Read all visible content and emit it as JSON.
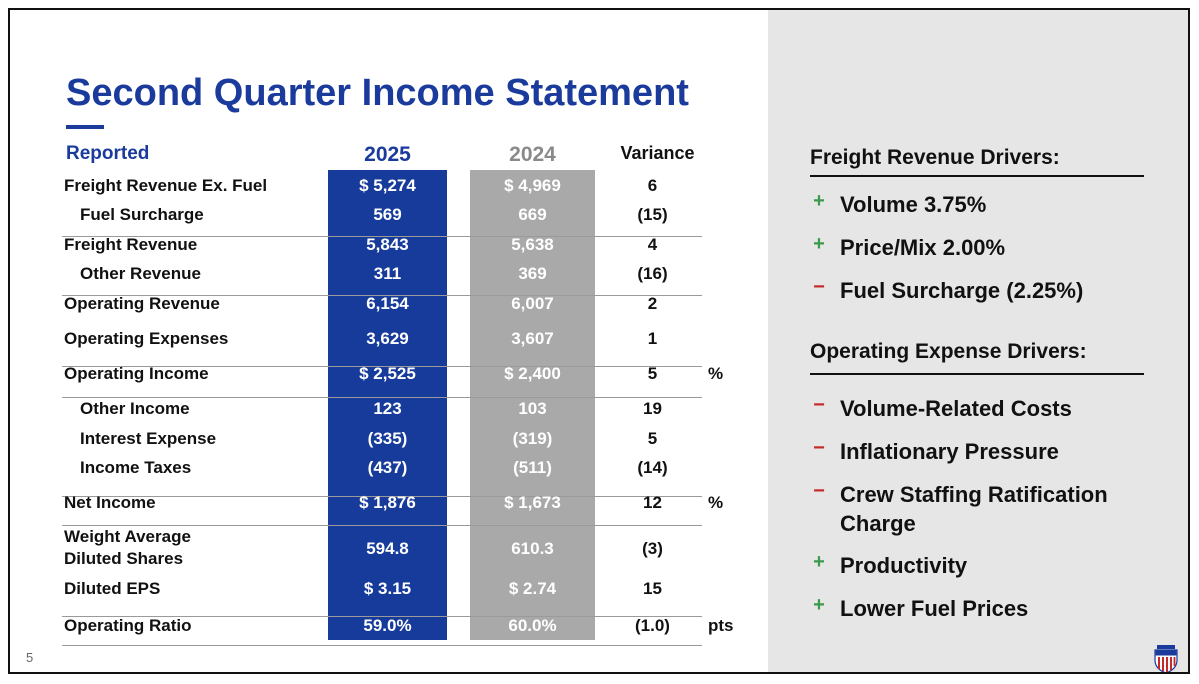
{
  "title": "Second Quarter Income Statement",
  "page_number": "5",
  "table": {
    "header": {
      "label": "Reported",
      "col_2025": "2025",
      "col_2024": "2024",
      "variance": "Variance"
    },
    "rows": [
      {
        "label": "Freight Revenue Ex. Fuel",
        "v2025": "$ 5,274",
        "v2024": "$ 4,969",
        "variance": "6",
        "unit": ""
      },
      {
        "label": "Fuel Surcharge",
        "v2025": "569",
        "v2024": "669",
        "variance": "(15)",
        "unit": ""
      },
      {
        "label": "Freight Revenue",
        "v2025": "5,843",
        "v2024": "5,638",
        "variance": "4",
        "unit": ""
      },
      {
        "label": "Other Revenue",
        "v2025": "311",
        "v2024": "369",
        "variance": "(16)",
        "unit": ""
      },
      {
        "label": "Operating Revenue",
        "v2025": "6,154",
        "v2024": "6,007",
        "variance": "2",
        "unit": ""
      },
      {
        "label": "Operating Expenses",
        "v2025": "3,629",
        "v2024": "3,607",
        "variance": "1",
        "unit": ""
      },
      {
        "label": "Operating Income",
        "v2025": "$ 2,525",
        "v2024": "$ 2,400",
        "variance": "5",
        "unit": "%"
      },
      {
        "label": "Other Income",
        "v2025": "123",
        "v2024": "103",
        "variance": "19",
        "unit": ""
      },
      {
        "label": "Interest Expense",
        "v2025": "(335)",
        "v2024": "(319)",
        "variance": "5",
        "unit": ""
      },
      {
        "label": "Income Taxes",
        "v2025": "(437)",
        "v2024": "(511)",
        "variance": "(14)",
        "unit": ""
      },
      {
        "label": "Net Income",
        "v2025": "$ 1,876",
        "v2024": "$ 1,673",
        "variance": "12",
        "unit": "%"
      },
      {
        "label_line1": "Weight Average",
        "label_line2": "Diluted Shares",
        "v2025": "594.8",
        "v2024": "610.3",
        "variance": "(3)",
        "unit": ""
      },
      {
        "label": "Diluted EPS",
        "v2025": "$ 3.15",
        "v2024": "$ 2.74",
        "variance": "15",
        "unit": ""
      },
      {
        "label": "Operating Ratio",
        "v2025": "59.0%",
        "v2024": "60.0%",
        "variance": "(1.0)",
        "unit": "pts"
      }
    ]
  },
  "freight_drivers": {
    "title": "Freight Revenue Drivers:",
    "items": [
      {
        "sign": "+",
        "text": "Volume 3.75%"
      },
      {
        "sign": "+",
        "text": "Price/Mix 2.00%"
      },
      {
        "sign": "-",
        "text": "Fuel Surcharge (2.25%)"
      }
    ]
  },
  "expense_drivers": {
    "title": "Operating Expense Drivers:",
    "items": [
      {
        "sign": "-",
        "text": "Volume-Related Costs"
      },
      {
        "sign": "-",
        "text": "Inflationary Pressure"
      },
      {
        "sign": "-",
        "text_line1": "Crew Staffing Ratification",
        "text_line2": "Charge"
      },
      {
        "sign": "+",
        "text": "Productivity"
      },
      {
        "sign": "+",
        "text": "Lower Fuel Prices"
      }
    ]
  },
  "colors": {
    "brand_blue": "#173b9a",
    "prior_gray": "#a9a9a9",
    "positive_green": "#3c9a4c",
    "negative_red": "#c42a2a"
  },
  "logo": {
    "name": "union-pacific-shield",
    "text": "UNION PACIFIC"
  }
}
